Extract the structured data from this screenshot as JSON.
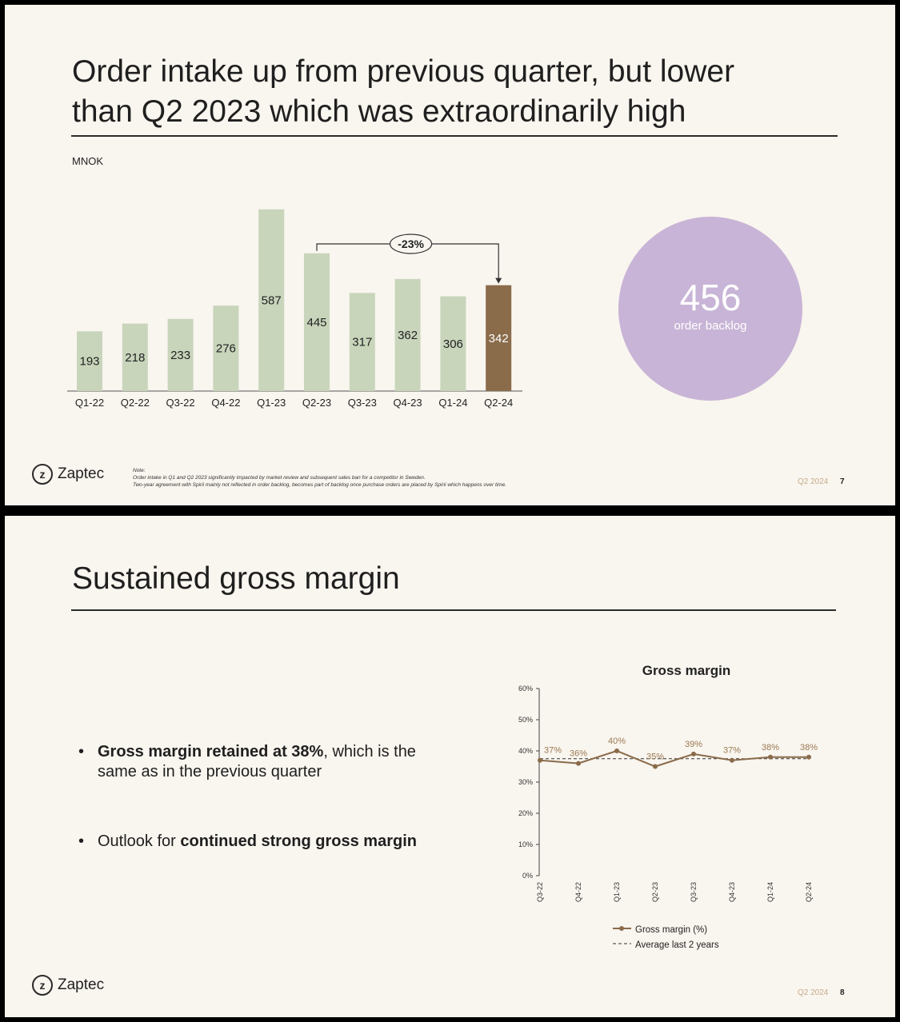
{
  "slides": [
    {
      "title_line1": "Order intake up from previous quarter, but lower",
      "title_line2": "than Q2 2023 which was extraordinarily high",
      "unit": "MNOK",
      "callout": "-23%",
      "backlog": {
        "value": "456",
        "label": "order backlog"
      },
      "logo_text": "Zaptec",
      "note": {
        "heading": "Note:",
        "line1": "Order intake in Q1 and Q2 2023 significantly impacted by market review and subsequent sales ban for a competitor in Sweden.",
        "line2": "Two-year agreement with Spirii mainly not reflected in order backlog, becomes part of backlog once purchase orders are placed by Spirii which happens over time."
      },
      "footer": "Q2 2024",
      "page": "7"
    },
    {
      "title": "Sustained gross margin",
      "bullets": [
        {
          "bold": "Gross margin retained at 38%",
          "text_after": ", which is the same as in the previous quarter"
        },
        {
          "text_before": "Outlook for ",
          "bold": "continued strong gross margin"
        }
      ],
      "logo_text": "Zaptec",
      "footer": "Q2 2024",
      "page": "8"
    }
  ],
  "colors": {
    "bar": "#c8d5bb",
    "highlight_bar": "#8a6b4a",
    "line": "#8a6b4a",
    "circle": "#c8b4d6",
    "background": "#f9f5ef",
    "footer": "#c5ad8a"
  },
  "chart_data": [
    {
      "type": "bar",
      "categories": [
        "Q1-22",
        "Q2-22",
        "Q3-22",
        "Q4-22",
        "Q1-23",
        "Q2-23",
        "Q3-23",
        "Q4-23",
        "Q1-24",
        "Q2-24"
      ],
      "values": [
        193,
        218,
        233,
        276,
        587,
        445,
        317,
        362,
        306,
        342
      ],
      "highlight": "Q2-24",
      "annotation": {
        "from": "Q2-23",
        "to": "Q2-24",
        "label": "-23%"
      },
      "title": "",
      "xlabel": "",
      "ylabel": "MNOK"
    },
    {
      "type": "line",
      "title": "Gross margin",
      "categories": [
        "Q3-22",
        "Q4-22",
        "Q1-23",
        "Q2-23",
        "Q3-23",
        "Q4-23",
        "Q1-24",
        "Q2-24"
      ],
      "series": [
        {
          "name": "Gross margin (%)",
          "values": [
            37,
            36,
            40,
            35,
            39,
            37,
            38,
            38
          ],
          "labels": [
            "37%",
            "36%",
            "40%",
            "35%",
            "39%",
            "37%",
            "38%",
            "38%"
          ]
        },
        {
          "name": "Average last 2 years",
          "values": [
            37.5,
            37.5,
            37.5,
            37.5,
            37.5,
            37.5,
            37.5,
            37.5
          ],
          "style": "dashed"
        }
      ],
      "ylim": [
        0,
        60
      ],
      "yticks": [
        "0%",
        "10%",
        "20%",
        "30%",
        "40%",
        "50%",
        "60%"
      ],
      "legend": "bottom"
    }
  ]
}
